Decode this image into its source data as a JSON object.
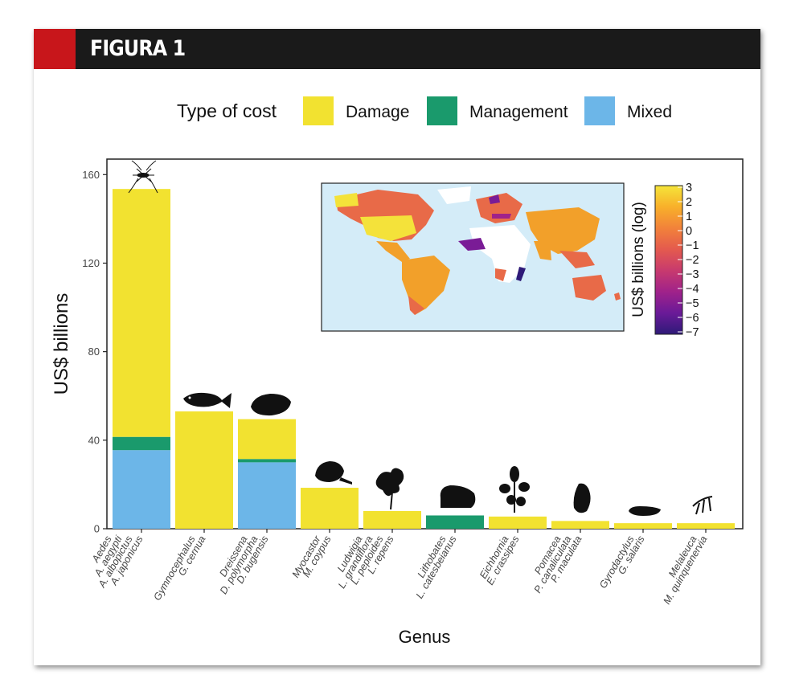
{
  "header": {
    "title": "FIGURA 1"
  },
  "colors": {
    "damage": "#f2e230",
    "management": "#1a9a6c",
    "mixed": "#6cb6e8",
    "banner_red": "#c8161b",
    "banner_dark": "#1a1a1a",
    "ocean": "#d4ecf8"
  },
  "chart_data": {
    "type": "bar",
    "stacked": true,
    "xlabel": "Genus",
    "ylabel": "US$ billions",
    "ylim": [
      0,
      167
    ],
    "yticks": [
      0,
      40,
      80,
      120,
      160
    ],
    "legend": {
      "title": "Type of cost",
      "placement": "top",
      "entries": [
        "Damage",
        "Management",
        "Mixed"
      ]
    },
    "categories": [
      [
        "Aedes",
        "A. aegypti",
        "A. albopictus",
        "A. japonicus"
      ],
      [
        "Gymnocephalus",
        "G. cernua"
      ],
      [
        "Dreissena",
        "D. polymorpha",
        "D. bugensis"
      ],
      [
        "Myocastor",
        "M. coypus"
      ],
      [
        "Ludwigia",
        "L. grandiflora",
        "L. peploides",
        "L. repens"
      ],
      [
        "Lithobates",
        "L. catesbeianus"
      ],
      [
        "Eichhornia",
        "E. crassipes"
      ],
      [
        "Pomacea",
        "P. canaliculata",
        "P. maculata"
      ],
      [
        "Gyrodactylus",
        "G. salaris"
      ],
      [
        "Melaleuca",
        "M. quinquenervia"
      ]
    ],
    "series": [
      {
        "name": "Mixed",
        "values": [
          35.5,
          0,
          30,
          0,
          0,
          0,
          0,
          0,
          0,
          0
        ]
      },
      {
        "name": "Management",
        "values": [
          6,
          0,
          1.5,
          0,
          0,
          6,
          0,
          0,
          0,
          0
        ]
      },
      {
        "name": "Damage",
        "values": [
          112,
          53,
          18,
          18.5,
          8,
          0,
          5.5,
          3.5,
          2.5,
          2.5
        ]
      }
    ],
    "inset": {
      "type": "choropleth-map",
      "colorbar_label": "US$ billions (log)",
      "colorbar_ticks": [
        "3",
        "2",
        "1",
        "0",
        "−1",
        "−2",
        "−3",
        "−4",
        "−5",
        "−6",
        "−7"
      ],
      "colorbar_stops": [
        "#f5e53a",
        "#f8b02a",
        "#f2823a",
        "#e45a4e",
        "#c83a6e",
        "#a0228a",
        "#6a1a98",
        "#2e1a78"
      ]
    }
  }
}
